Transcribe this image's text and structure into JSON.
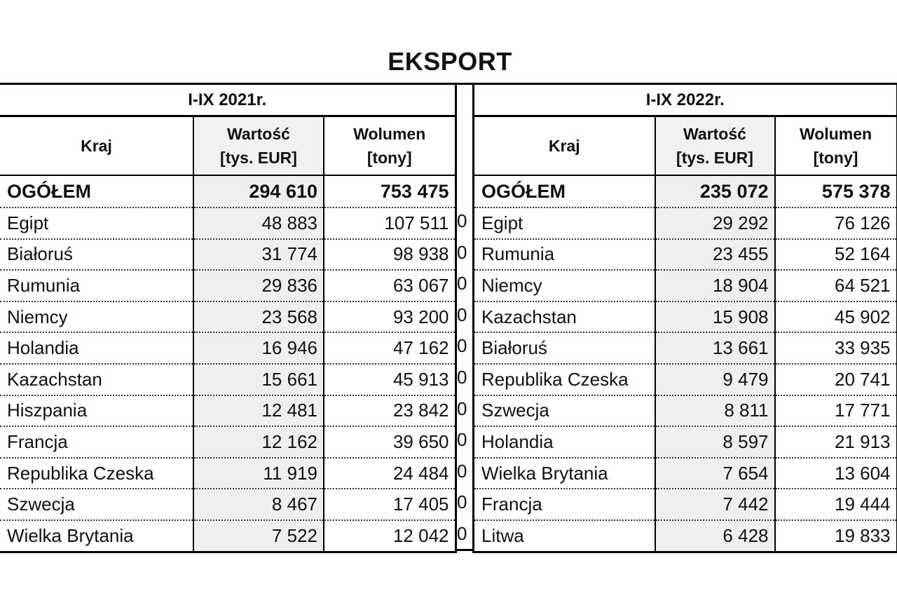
{
  "title": "EKSPORT",
  "headers": {
    "country": "Kraj",
    "value_line1": "Wartość",
    "value_line2": "[tys. EUR]",
    "volume_line1": "Wolumen",
    "volume_line2": "[tony]"
  },
  "separator_marker": "0",
  "left": {
    "period": "I-IX 2021r.",
    "total": {
      "country": "OGÓŁEM",
      "value": "294 610",
      "volume": "753 475"
    },
    "rows": [
      {
        "country": "Egipt",
        "value": "48 883",
        "volume": "107 511"
      },
      {
        "country": "Białoruś",
        "value": "31 774",
        "volume": "98 938"
      },
      {
        "country": "Rumunia",
        "value": "29 836",
        "volume": "63 067"
      },
      {
        "country": "Niemcy",
        "value": "23 568",
        "volume": "93 200"
      },
      {
        "country": "Holandia",
        "value": "16 946",
        "volume": "47 162"
      },
      {
        "country": "Kazachstan",
        "value": "15 661",
        "volume": "45 913"
      },
      {
        "country": "Hiszpania",
        "value": "12 481",
        "volume": "23 842"
      },
      {
        "country": "Francja",
        "value": "12 162",
        "volume": "39 650"
      },
      {
        "country": "Republika Czeska",
        "value": "11 919",
        "volume": "24 484"
      },
      {
        "country": "Szwecja",
        "value": "8 467",
        "volume": "17 405"
      },
      {
        "country": "Wielka Brytania",
        "value": "7 522",
        "volume": "12 042"
      }
    ]
  },
  "right": {
    "period": "I-IX 2022r.",
    "total": {
      "country": "OGÓŁEM",
      "value": "235 072",
      "volume": "575 378"
    },
    "rows": [
      {
        "country": "Egipt",
        "value": "29 292",
        "volume": "76 126"
      },
      {
        "country": "Rumunia",
        "value": "23 455",
        "volume": "52 164"
      },
      {
        "country": "Niemcy",
        "value": "18 904",
        "volume": "64 521"
      },
      {
        "country": "Kazachstan",
        "value": "15 908",
        "volume": "45 902"
      },
      {
        "country": "Białoruś",
        "value": "13 661",
        "volume": "33 935"
      },
      {
        "country": "Republika Czeska",
        "value": "9 479",
        "volume": "20 741"
      },
      {
        "country": "Szwecja",
        "value": "8 811",
        "volume": "17 771"
      },
      {
        "country": "Holandia",
        "value": "8 597",
        "volume": "21 913"
      },
      {
        "country": "Wielka Brytania",
        "value": "7 654",
        "volume": "13 604"
      },
      {
        "country": "Francja",
        "value": "7 442",
        "volume": "19 444"
      },
      {
        "country": "Litwa",
        "value": "6 428",
        "volume": "19 833"
      }
    ]
  }
}
